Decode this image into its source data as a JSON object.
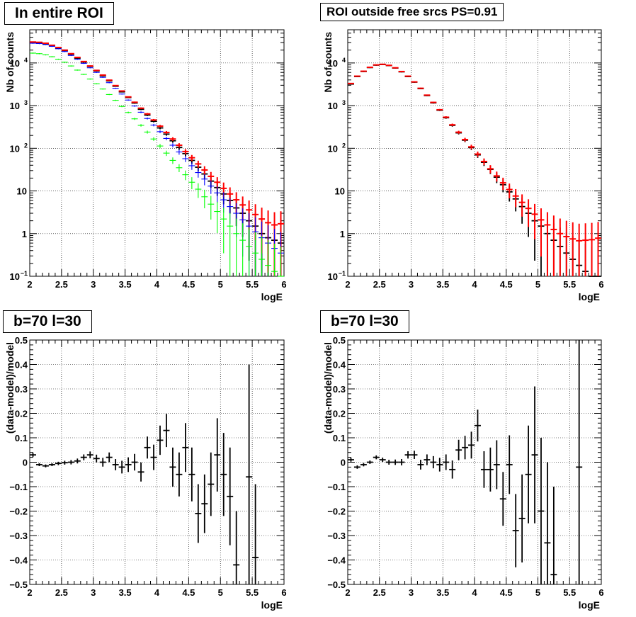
{
  "chart_data": [
    {
      "type": "scatter",
      "title": "In entire ROI",
      "xlabel": "logE",
      "ylabel": "Nb of counts",
      "xlim": [
        2,
        6
      ],
      "ylim": [
        0.1,
        60000
      ],
      "yscale": "log",
      "grid": true,
      "x_ticks": [
        "2",
        "2.5",
        "3",
        "3.5",
        "4",
        "4.5",
        "5",
        "5.5",
        "6"
      ],
      "y_ticks": [
        "1",
        "10"
      ],
      "y_ticks_pow": [
        {
          "base": "10",
          "exp": "−1"
        },
        {
          "base": "10",
          "exp": "2"
        },
        {
          "base": "10",
          "exp": "3"
        },
        {
          "base": "10",
          "exp": "4"
        }
      ],
      "x": [
        2.05,
        2.15,
        2.25,
        2.35,
        2.45,
        2.55,
        2.65,
        2.75,
        2.85,
        2.95,
        3.05,
        3.15,
        3.25,
        3.35,
        3.45,
        3.55,
        3.65,
        3.75,
        3.85,
        3.95,
        4.05,
        4.15,
        4.25,
        4.35,
        4.45,
        4.55,
        4.65,
        4.75,
        4.85,
        4.95,
        5.05,
        5.15,
        5.25,
        5.35,
        5.45,
        5.55,
        5.65,
        5.75,
        5.85,
        5.95
      ],
      "series": [
        {
          "color": "#000000",
          "values": [
            30000,
            29500,
            28000,
            25500,
            22500,
            19500,
            16000,
            13000,
            10500,
            8300,
            6500,
            5000,
            3800,
            2850,
            2100,
            1550,
            1150,
            820,
            600,
            430,
            300,
            215,
            150,
            105,
            75,
            52,
            36,
            25,
            17,
            12,
            8.5,
            6,
            4,
            3,
            2,
            1.5,
            1,
            0.8,
            0.7,
            0.6
          ]
        },
        {
          "color": "#ff0000",
          "values": [
            31000,
            30500,
            29000,
            26000,
            23000,
            20000,
            16500,
            13500,
            10800,
            8500,
            6700,
            5200,
            3950,
            2950,
            2200,
            1600,
            1200,
            870,
            640,
            460,
            330,
            235,
            165,
            118,
            84,
            60,
            43,
            31,
            22,
            16,
            11.5,
            8.5,
            6.2,
            4.7,
            3.6,
            2.8,
            2.2,
            1.8,
            1.6,
            1.7
          ]
        },
        {
          "color": "#0000ff",
          "values": [
            29000,
            28500,
            27000,
            24500,
            21500,
            18500,
            15000,
            12200,
            9800,
            7700,
            6000,
            4600,
            3450,
            2550,
            1870,
            1350,
            980,
            700,
            500,
            350,
            245,
            170,
            118,
            82,
            57,
            39,
            27,
            19,
            13,
            9,
            6.2,
            4.3,
            3,
            2.1,
            1.5,
            1.1,
            0.8,
            0.6,
            0.45,
            0.35
          ]
        },
        {
          "color": "#00ff00",
          "values": [
            17000,
            16500,
            15500,
            14000,
            12200,
            10400,
            8500,
            6800,
            5400,
            4200,
            3250,
            2450,
            1820,
            1330,
            960,
            690,
            490,
            345,
            240,
            165,
            113,
            77,
            52,
            35,
            24,
            16,
            11,
            7.3,
            4.9,
            3.3,
            2.2,
            1.5,
            1,
            0.7,
            0.5,
            0.35,
            0.25,
            0.18,
            0.13,
            0.1
          ]
        }
      ]
    },
    {
      "type": "scatter",
      "title": "ROI outside free srcs PS=0.91",
      "xlabel": "logE",
      "ylabel": "Nb of counts",
      "xlim": [
        2,
        6
      ],
      "ylim": [
        0.1,
        60000
      ],
      "yscale": "log",
      "grid": true,
      "x_ticks": [
        "2",
        "2.5",
        "3",
        "3.5",
        "4",
        "4.5",
        "5",
        "5.5",
        "6"
      ],
      "y_ticks": [
        "1",
        "10"
      ],
      "y_ticks_pow": [
        {
          "base": "10",
          "exp": "−1"
        },
        {
          "base": "10",
          "exp": "2"
        },
        {
          "base": "10",
          "exp": "3"
        },
        {
          "base": "10",
          "exp": "4"
        }
      ],
      "x": [
        2.05,
        2.15,
        2.25,
        2.35,
        2.45,
        2.55,
        2.65,
        2.75,
        2.85,
        2.95,
        3.05,
        3.15,
        3.25,
        3.35,
        3.45,
        3.55,
        3.65,
        3.75,
        3.85,
        3.95,
        4.05,
        4.15,
        4.25,
        4.35,
        4.45,
        4.55,
        4.65,
        4.75,
        4.85,
        4.95,
        5.05,
        5.15,
        5.25,
        5.35,
        5.45,
        5.55,
        5.65,
        5.75,
        5.85,
        5.95
      ],
      "series": [
        {
          "color": "#000000",
          "values": [
            3200,
            4800,
            6300,
            7800,
            8900,
            9200,
            8700,
            7600,
            6200,
            4800,
            3550,
            2500,
            1720,
            1160,
            780,
            520,
            345,
            230,
            155,
            104,
            70,
            47,
            32,
            21,
            14,
            9.5,
            6.5,
            4.3,
            3,
            2,
            1.5,
            1,
            0.7,
            0.5,
            0.35,
            0.25,
            0.18,
            0.13,
            0.1,
            0.08
          ]
        },
        {
          "color": "#ff0000",
          "values": [
            3300,
            4900,
            6400,
            7900,
            9000,
            9300,
            8800,
            7700,
            6300,
            4900,
            3600,
            2550,
            1760,
            1190,
            800,
            535,
            355,
            238,
            160,
            108,
            73,
            49,
            33,
            22.5,
            15.5,
            10.8,
            7.6,
            5.4,
            3.9,
            2.85,
            2.1,
            1.6,
            1.25,
            1,
            0.85,
            0.75,
            0.68,
            0.7,
            0.72,
            0.78
          ]
        }
      ]
    },
    {
      "type": "scatter",
      "title": "b=70 l=30",
      "xlabel": "logE",
      "ylabel": "(data-model)/model",
      "xlim": [
        2,
        6
      ],
      "ylim": [
        -0.5,
        0.5
      ],
      "grid": true,
      "x_ticks": [
        "2",
        "2.5",
        "3",
        "3.5",
        "4",
        "4.5",
        "5",
        "5.5",
        "6"
      ],
      "y_ticks": [
        "−0.5",
        "−0.4",
        "−0.3",
        "−0.2",
        "−0.1",
        "0",
        "0.1",
        "0.2",
        "0.3",
        "0.4",
        "0.5"
      ],
      "x": [
        2.05,
        2.15,
        2.25,
        2.35,
        2.45,
        2.55,
        2.65,
        2.75,
        2.85,
        2.95,
        3.05,
        3.15,
        3.25,
        3.35,
        3.45,
        3.55,
        3.65,
        3.75,
        3.85,
        3.95,
        4.05,
        4.15,
        4.25,
        4.35,
        4.45,
        4.55,
        4.65,
        4.75,
        4.85,
        4.95,
        5.05,
        5.15,
        5.25,
        5.35,
        5.45,
        5.55,
        5.65,
        5.75,
        5.85,
        5.95
      ],
      "values": [
        0.03,
        -0.01,
        -0.015,
        -0.01,
        -0.005,
        -0.002,
        0,
        0.005,
        0.02,
        0.03,
        0.015,
        0.0,
        0.02,
        -0.01,
        -0.02,
        -0.01,
        0.0,
        -0.04,
        0.06,
        0.02,
        0.09,
        0.13,
        -0.02,
        -0.05,
        0.06,
        -0.05,
        -0.21,
        -0.17,
        -0.09,
        0.03,
        -0.05,
        -0.14,
        -0.42,
        null,
        -0.06,
        -0.39,
        null,
        null,
        null,
        null
      ],
      "errors": [
        0.008,
        0.006,
        0.006,
        0.006,
        0.007,
        0.008,
        0.009,
        0.01,
        0.012,
        0.014,
        0.016,
        0.018,
        0.02,
        0.023,
        0.026,
        0.03,
        0.034,
        0.039,
        0.045,
        0.052,
        0.06,
        0.068,
        0.08,
        0.09,
        0.1,
        0.11,
        0.12,
        0.12,
        0.13,
        0.15,
        0.17,
        0.2,
        0.22,
        0.25,
        0.46,
        0.3,
        0,
        0,
        0,
        0
      ]
    },
    {
      "type": "scatter",
      "title": "b=70 l=30",
      "xlabel": "logE",
      "ylabel": "(data-model)/model",
      "xlim": [
        2,
        6
      ],
      "ylim": [
        -0.5,
        0.5
      ],
      "grid": true,
      "x_ticks": [
        "2",
        "2.5",
        "3",
        "3.5",
        "4",
        "4.5",
        "5",
        "5.5",
        "6"
      ],
      "y_ticks": [
        "−0.5",
        "−0.4",
        "−0.3",
        "−0.2",
        "−0.1",
        "0",
        "0.1",
        "0.2",
        "0.3",
        "0.4",
        "0.5"
      ],
      "x": [
        2.05,
        2.15,
        2.25,
        2.35,
        2.45,
        2.55,
        2.65,
        2.75,
        2.85,
        2.95,
        3.05,
        3.15,
        3.25,
        3.35,
        3.45,
        3.55,
        3.65,
        3.75,
        3.85,
        3.95,
        4.05,
        4.15,
        4.25,
        4.35,
        4.45,
        4.55,
        4.65,
        4.75,
        4.85,
        4.95,
        5.05,
        5.15,
        5.25,
        5.35,
        5.45,
        5.55,
        5.65,
        5.75,
        5.85,
        5.95
      ],
      "values": [
        0.01,
        -0.02,
        -0.01,
        0.0,
        0.02,
        0.01,
        0.0,
        0.0,
        0.0,
        0.03,
        0.03,
        -0.01,
        0.01,
        0.0,
        -0.01,
        0.0,
        -0.03,
        0.05,
        0.06,
        0.07,
        0.15,
        -0.03,
        -0.03,
        -0.01,
        -0.15,
        -0.01,
        -0.28,
        -0.23,
        -0.05,
        0.03,
        -0.2,
        -0.33,
        -0.46,
        null,
        null,
        null,
        -0.02,
        null,
        null,
        null
      ],
      "errors": [
        0.008,
        0.007,
        0.007,
        0.007,
        0.008,
        0.009,
        0.01,
        0.011,
        0.013,
        0.015,
        0.017,
        0.02,
        0.022,
        0.025,
        0.028,
        0.032,
        0.037,
        0.042,
        0.048,
        0.055,
        0.065,
        0.075,
        0.09,
        0.1,
        0.11,
        0.12,
        0.15,
        0.18,
        0.2,
        0.28,
        0.3,
        0.33,
        0.36,
        0.4,
        0,
        0,
        0.55,
        0,
        0,
        0
      ]
    }
  ]
}
